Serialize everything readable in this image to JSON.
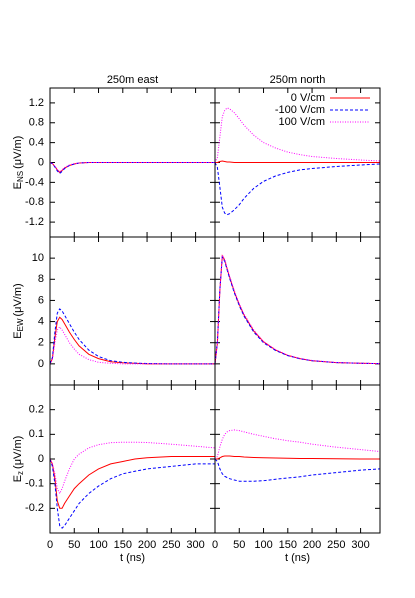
{
  "chart_data": [
    {
      "type": "line",
      "title": "250m east",
      "ylabel": [
        "E",
        "NS",
        "(μV/m)"
      ],
      "x": [
        0,
        5,
        10,
        15,
        20,
        25,
        30,
        40,
        50,
        60,
        80,
        100,
        125,
        150,
        175,
        200,
        250,
        300,
        340
      ],
      "xlim": [
        0,
        340
      ],
      "xticks": [
        0,
        50,
        100,
        150,
        200,
        250,
        300
      ],
      "ylim": [
        -1.5,
        1.5
      ],
      "yticks": [
        -1.2,
        -0.8,
        -0.4,
        0,
        0.4,
        0.8,
        1.2
      ],
      "series": [
        {
          "color": "#ff0000",
          "style": "solid",
          "values": [
            0,
            -0.02,
            -0.08,
            -0.15,
            -0.2,
            -0.16,
            -0.11,
            -0.06,
            -0.03,
            -0.01,
            0,
            0,
            0,
            0,
            0,
            0,
            0,
            0,
            0
          ]
        },
        {
          "color": "#0000ff",
          "style": "dashed",
          "values": [
            0,
            -0.02,
            -0.09,
            -0.17,
            -0.22,
            -0.18,
            -0.12,
            -0.06,
            -0.03,
            -0.01,
            0,
            0,
            0,
            0,
            0,
            0,
            0,
            0,
            0
          ]
        },
        {
          "color": "#ff00ff",
          "style": "dotted",
          "values": [
            0,
            -0.02,
            -0.07,
            -0.14,
            -0.19,
            -0.15,
            -0.1,
            -0.05,
            -0.02,
            -0.01,
            0,
            0,
            0,
            0,
            0,
            0,
            0,
            0,
            0
          ]
        }
      ]
    },
    {
      "type": "line",
      "title": "250m north",
      "legend": "upper right",
      "x": [
        0,
        5,
        10,
        15,
        20,
        25,
        30,
        40,
        50,
        60,
        80,
        100,
        125,
        150,
        175,
        200,
        250,
        300,
        340
      ],
      "xlim": [
        0,
        340
      ],
      "xticks": [
        0,
        50,
        100,
        150,
        200,
        250,
        300
      ],
      "ylim": [
        -1.5,
        1.5
      ],
      "yticks": [
        -1.2,
        -0.8,
        -0.4,
        0,
        0.4,
        0.8,
        1.2
      ],
      "series": [
        {
          "name": "0 V/cm",
          "color": "#ff0000",
          "style": "solid",
          "values": [
            0,
            0,
            0.02,
            0.03,
            0.02,
            0.01,
            0.01,
            0,
            0,
            0,
            0,
            0,
            0,
            0,
            0,
            0,
            0,
            0,
            0
          ]
        },
        {
          "name": "-100 V/cm",
          "color": "#0000ff",
          "style": "dashed",
          "values": [
            0,
            -0.1,
            -0.5,
            -0.9,
            -1.02,
            -1.05,
            -1.03,
            -0.95,
            -0.85,
            -0.72,
            -0.52,
            -0.38,
            -0.27,
            -0.2,
            -0.15,
            -0.12,
            -0.08,
            -0.05,
            -0.03
          ]
        },
        {
          "name": "100 V/cm",
          "color": "#ff00ff",
          "style": "dotted",
          "values": [
            0,
            0.1,
            0.52,
            0.92,
            1.05,
            1.1,
            1.08,
            1.0,
            0.88,
            0.75,
            0.55,
            0.4,
            0.29,
            0.21,
            0.16,
            0.12,
            0.08,
            0.05,
            0.03
          ]
        }
      ]
    },
    {
      "type": "line",
      "ylabel": [
        "E",
        "EW",
        "(μV/m)"
      ],
      "x": [
        0,
        5,
        10,
        15,
        20,
        25,
        30,
        40,
        50,
        60,
        80,
        100,
        125,
        150,
        175,
        200,
        250,
        300,
        340
      ],
      "xlim": [
        0,
        340
      ],
      "xticks": [
        0,
        50,
        100,
        150,
        200,
        250,
        300
      ],
      "ylim": [
        -2,
        12
      ],
      "yticks": [
        0,
        2,
        4,
        6,
        8,
        10
      ],
      "series": [
        {
          "color": "#ff0000",
          "style": "solid",
          "values": [
            0,
            0.5,
            2.5,
            4.0,
            4.4,
            4.2,
            3.8,
            3.0,
            2.3,
            1.7,
            0.9,
            0.5,
            0.2,
            0.1,
            0.05,
            0,
            0,
            0,
            0
          ]
        },
        {
          "color": "#0000ff",
          "style": "dashed",
          "values": [
            0,
            0.6,
            3,
            4.8,
            5.2,
            5.0,
            4.6,
            3.8,
            3.0,
            2.3,
            1.3,
            0.7,
            0.3,
            0.15,
            0.07,
            0.03,
            0,
            0,
            0
          ]
        },
        {
          "color": "#ff00ff",
          "style": "dotted",
          "values": [
            0,
            0.4,
            2,
            3.2,
            3.5,
            3.2,
            2.8,
            2.0,
            1.4,
            0.9,
            0.4,
            0.15,
            0.05,
            0,
            0,
            0,
            0,
            0,
            0
          ]
        }
      ]
    },
    {
      "type": "line",
      "x": [
        0,
        5,
        10,
        15,
        20,
        25,
        30,
        40,
        50,
        60,
        80,
        100,
        125,
        150,
        175,
        200,
        250,
        300,
        340
      ],
      "xlim": [
        0,
        340
      ],
      "xticks": [
        0,
        50,
        100,
        150,
        200,
        250,
        300
      ],
      "ylim": [
        -2,
        12
      ],
      "yticks": [
        0,
        2,
        4,
        6,
        8,
        10
      ],
      "series": [
        {
          "color": "#ff0000",
          "style": "solid",
          "values": [
            0,
            2,
            7,
            10.2,
            9.8,
            9,
            8.2,
            6.8,
            5.6,
            4.6,
            3.1,
            2.1,
            1.3,
            0.8,
            0.5,
            0.3,
            0.12,
            0.05,
            0.02
          ]
        },
        {
          "color": "#0000ff",
          "style": "dashed",
          "values": [
            0,
            2.1,
            7.1,
            10.1,
            9.7,
            8.9,
            8.1,
            6.7,
            5.5,
            4.5,
            3.0,
            2.0,
            1.25,
            0.78,
            0.48,
            0.3,
            0.12,
            0.05,
            0.02
          ]
        },
        {
          "color": "#ff00ff",
          "style": "dotted",
          "values": [
            0,
            1.9,
            6.9,
            10.3,
            9.9,
            9.1,
            8.3,
            6.9,
            5.7,
            4.7,
            3.2,
            2.1,
            1.35,
            0.82,
            0.52,
            0.32,
            0.13,
            0.05,
            0.02
          ]
        }
      ]
    },
    {
      "type": "line",
      "ylabel": [
        "E",
        "z",
        "(μV/m)"
      ],
      "xlabel": "t (ns)",
      "x": [
        0,
        5,
        10,
        15,
        20,
        25,
        30,
        40,
        50,
        60,
        80,
        100,
        125,
        150,
        175,
        200,
        250,
        300,
        340
      ],
      "xlim": [
        0,
        340
      ],
      "xticks": [
        0,
        50,
        100,
        150,
        200,
        250,
        300
      ],
      "ylim": [
        -0.3,
        0.3
      ],
      "yticks": [
        -0.2,
        -0.1,
        0,
        0.1,
        0.2
      ],
      "series": [
        {
          "color": "#ff0000",
          "style": "solid",
          "values": [
            0,
            -0.02,
            -0.08,
            -0.17,
            -0.2,
            -0.2,
            -0.18,
            -0.15,
            -0.12,
            -0.1,
            -0.065,
            -0.04,
            -0.02,
            -0.01,
            0,
            0.005,
            0.01,
            0.01,
            0.01
          ]
        },
        {
          "color": "#0000ff",
          "style": "dashed",
          "values": [
            0,
            -0.03,
            -0.1,
            -0.2,
            -0.27,
            -0.28,
            -0.27,
            -0.24,
            -0.21,
            -0.18,
            -0.14,
            -0.11,
            -0.08,
            -0.06,
            -0.05,
            -0.04,
            -0.03,
            -0.02,
            -0.02
          ]
        },
        {
          "color": "#ff00ff",
          "style": "dotted",
          "values": [
            0,
            -0.02,
            -0.06,
            -0.12,
            -0.14,
            -0.12,
            -0.09,
            -0.04,
            0,
            0.02,
            0.045,
            0.058,
            0.066,
            0.068,
            0.068,
            0.067,
            0.06,
            0.052,
            0.045
          ]
        }
      ]
    },
    {
      "type": "line",
      "xlabel": "t (ns)",
      "x": [
        0,
        5,
        10,
        15,
        20,
        25,
        30,
        40,
        50,
        60,
        80,
        100,
        125,
        150,
        175,
        200,
        250,
        300,
        340
      ],
      "xlim": [
        0,
        340
      ],
      "xticks": [
        0,
        50,
        100,
        150,
        200,
        250,
        300
      ],
      "ylim": [
        -0.3,
        0.3
      ],
      "yticks": [
        -0.2,
        -0.1,
        0,
        0.1,
        0.2
      ],
      "series": [
        {
          "color": "#ff0000",
          "style": "solid",
          "values": [
            0,
            0,
            0.005,
            0.01,
            0.012,
            0.012,
            0.012,
            0.01,
            0.01,
            0.008,
            0.006,
            0.005,
            0.004,
            0.003,
            0.002,
            0.002,
            0.001,
            0,
            0
          ]
        },
        {
          "color": "#0000ff",
          "style": "dashed",
          "values": [
            0,
            -0.01,
            -0.04,
            -0.06,
            -0.07,
            -0.075,
            -0.08,
            -0.085,
            -0.09,
            -0.09,
            -0.09,
            -0.088,
            -0.082,
            -0.077,
            -0.072,
            -0.065,
            -0.055,
            -0.045,
            -0.04
          ]
        },
        {
          "color": "#ff00ff",
          "style": "dotted",
          "values": [
            0,
            0.01,
            0.05,
            0.08,
            0.1,
            0.11,
            0.115,
            0.118,
            0.115,
            0.11,
            0.1,
            0.092,
            0.082,
            0.074,
            0.068,
            0.06,
            0.048,
            0.038,
            0.03
          ]
        }
      ]
    }
  ]
}
